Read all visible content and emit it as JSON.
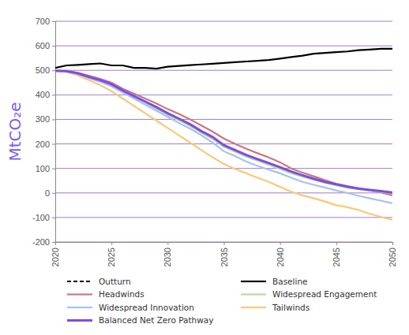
{
  "chart_data": {
    "type": "line",
    "y_label": "MtCO₂e",
    "x": [
      2020,
      2021,
      2022,
      2023,
      2024,
      2025,
      2026,
      2027,
      2028,
      2029,
      2030,
      2031,
      2032,
      2033,
      2034,
      2035,
      2036,
      2037,
      2038,
      2039,
      2040,
      2041,
      2042,
      2043,
      2044,
      2045,
      2046,
      2047,
      2048,
      2049,
      2050
    ],
    "xlim": [
      2020,
      2050
    ],
    "xticks": [
      2020,
      2025,
      2030,
      2035,
      2040,
      2045,
      2050
    ],
    "ylim": [
      -200,
      700
    ],
    "yticks": [
      -200,
      -100,
      0,
      100,
      200,
      300,
      400,
      500,
      600,
      700
    ],
    "grid": true,
    "legend": "bottom",
    "series": [
      {
        "name": "Outturn",
        "color": "#000000",
        "line_style": "dashed",
        "values": [
          null,
          null,
          null,
          null,
          null,
          null,
          null,
          null,
          null,
          null,
          null,
          null,
          null,
          null,
          null,
          null,
          null,
          null,
          null,
          null,
          null,
          null,
          null,
          null,
          null,
          null,
          null,
          null,
          null,
          null,
          null
        ]
      },
      {
        "name": "Baseline",
        "color": "#000000",
        "line_style": "solid",
        "values": [
          510,
          520,
          522,
          525,
          528,
          520,
          520,
          510,
          510,
          507,
          515,
          518,
          521,
          524,
          527,
          530,
          533,
          536,
          539,
          542,
          548,
          554,
          560,
          568,
          571,
          574,
          577,
          582,
          585,
          588,
          588
        ]
      },
      {
        "name": "Headwinds",
        "color": "#c9787f",
        "line_style": "solid",
        "values": [
          498,
          497,
          490,
          478,
          465,
          450,
          425,
          405,
          385,
          365,
          342,
          322,
          300,
          275,
          250,
          222,
          200,
          180,
          162,
          145,
          125,
          100,
          83,
          68,
          52,
          38,
          28,
          18,
          10,
          2,
          -10
        ]
      },
      {
        "name": "Widespread Engagement",
        "color": "#b5dc9b",
        "line_style": "solid",
        "values": [
          498,
          496,
          486,
          470,
          456,
          438,
          413,
          390,
          367,
          343,
          318,
          296,
          273,
          245,
          220,
          188,
          168,
          148,
          131,
          115,
          98,
          80,
          66,
          53,
          41,
          31,
          22,
          15,
          9,
          4,
          0
        ]
      },
      {
        "name": "Widespread Innovation",
        "color": "#a7c2ea",
        "line_style": "solid",
        "values": [
          498,
          495,
          485,
          468,
          453,
          435,
          410,
          385,
          360,
          335,
          310,
          285,
          262,
          235,
          205,
          170,
          150,
          128,
          110,
          95,
          80,
          62,
          45,
          33,
          22,
          10,
          0,
          -12,
          -22,
          -32,
          -42
        ]
      },
      {
        "name": "Tailwinds",
        "color": "#f7c978",
        "line_style": "solid",
        "values": [
          498,
          493,
          480,
          460,
          440,
          415,
          385,
          355,
          325,
          295,
          265,
          235,
          205,
          175,
          145,
          118,
          98,
          80,
          62,
          45,
          25,
          5,
          -10,
          -22,
          -35,
          -50,
          -58,
          -70,
          -85,
          -98,
          -110
        ]
      },
      {
        "name": "Balanced Net Zero Pathway",
        "color": "#7d4ce6",
        "line_style": "solid",
        "values": [
          498,
          497,
          488,
          473,
          460,
          443,
          418,
          395,
          373,
          350,
          325,
          303,
          280,
          252,
          228,
          195,
          175,
          155,
          138,
          122,
          105,
          87,
          72,
          58,
          45,
          35,
          25,
          18,
          12,
          7,
          2
        ]
      }
    ]
  }
}
